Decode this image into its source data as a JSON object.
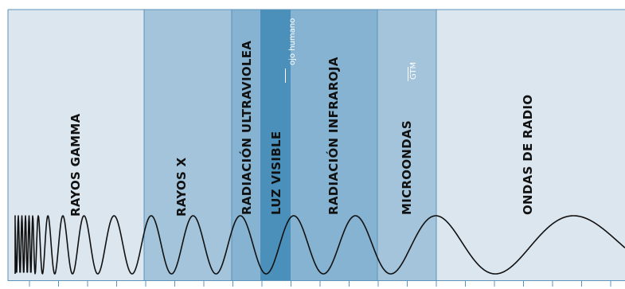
{
  "diagram": {
    "colors": {
      "light": "#dbe6ef",
      "mid": "#a3c4da",
      "dark": "#85b3d1",
      "visible": "#4b8fbb",
      "border": "#5c93bb",
      "wave": "#111111"
    },
    "bands": [
      {
        "id": "gamma",
        "label": "RAYOS GAMMA",
        "tone": "light"
      },
      {
        "id": "xray",
        "label": "RAYOS X",
        "tone": "mid"
      },
      {
        "id": "uv",
        "label": "RADIACIÓN ULTRAVIOLEA",
        "tone": "dark"
      },
      {
        "id": "visible",
        "label": "LUZ VISIBLE",
        "tone": "visible",
        "note": "ojo humano"
      },
      {
        "id": "ir",
        "label": "RADIACIÓN INFRAROJA",
        "tone": "dark"
      },
      {
        "id": "micro",
        "label": "MICROONDAS",
        "tone": "mid",
        "note": "GTM"
      },
      {
        "id": "radio",
        "label": "ONDAS DE RADIO",
        "tone": "light"
      }
    ]
  }
}
